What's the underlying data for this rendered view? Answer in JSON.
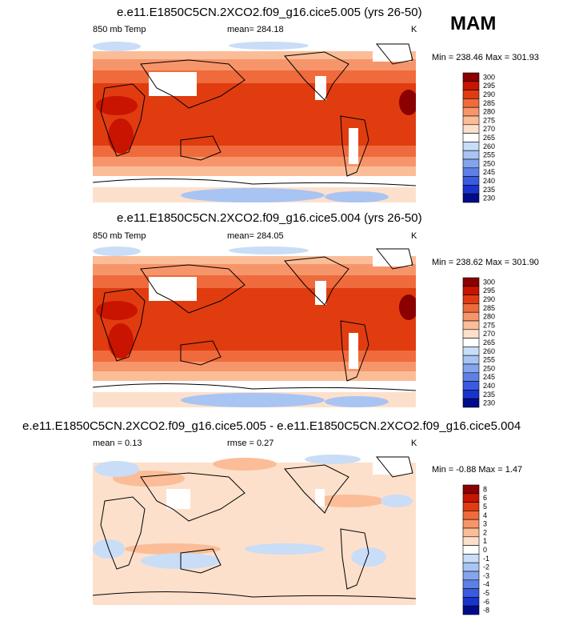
{
  "season": "MAM",
  "chart_data": [
    {
      "type": "heatmap",
      "title": "e.e11.E1850C5CN.2XCO2.f09_g16.cice5.005 (yrs 26-50)",
      "left_label": "850 mb Temp",
      "mean_label": "mean= 284.18",
      "units": "K",
      "minmax_label": "Min = 238.46 Max = 301.93",
      "min": 238.46,
      "max": 301.93,
      "mean": 284.18,
      "colorbar_levels": [
        "300",
        "295",
        "290",
        "285",
        "280",
        "275",
        "270",
        "265",
        "260",
        "255",
        "250",
        "245",
        "240",
        "235",
        "230"
      ],
      "colorbar_colors": [
        "#8b0000",
        "#c81400",
        "#e03c10",
        "#ef6a3c",
        "#f7956a",
        "#fbbd97",
        "#fde0cc",
        "#ffffff",
        "#c9ddf7",
        "#a8c4f3",
        "#84a4ee",
        "#5e80e6",
        "#3a5ae0",
        "#1a33cc",
        "#000b8a"
      ]
    },
    {
      "type": "heatmap",
      "title": "e.e11.E1850C5CN.2XCO2.f09_g16.cice5.004 (yrs 26-50)",
      "left_label": "850 mb Temp",
      "mean_label": "mean= 284.05",
      "units": "K",
      "minmax_label": "Min = 238.62 Max = 301.90",
      "min": 238.62,
      "max": 301.9,
      "mean": 284.05,
      "colorbar_levels": [
        "300",
        "295",
        "290",
        "285",
        "280",
        "275",
        "270",
        "265",
        "260",
        "255",
        "250",
        "245",
        "240",
        "235",
        "230"
      ],
      "colorbar_colors": [
        "#8b0000",
        "#c81400",
        "#e03c10",
        "#ef6a3c",
        "#f7956a",
        "#fbbd97",
        "#fde0cc",
        "#ffffff",
        "#c9ddf7",
        "#a8c4f3",
        "#84a4ee",
        "#5e80e6",
        "#3a5ae0",
        "#1a33cc",
        "#000b8a"
      ]
    },
    {
      "type": "heatmap",
      "title": "e.e11.E1850C5CN.2XCO2.f09_g16.cice5.005 - e.e11.E1850C5CN.2XCO2.f09_g16.cice5.004",
      "left_label": "mean =  0.13",
      "mean_label": "rmse =  0.27",
      "units": "K",
      "minmax_label": "Min =  -0.88 Max =   1.47",
      "min": -0.88,
      "max": 1.47,
      "mean": 0.13,
      "rmse": 0.27,
      "colorbar_levels": [
        "8",
        "6",
        "5",
        "4",
        "3",
        "2",
        "1",
        "0",
        "-1",
        "-2",
        "-3",
        "-4",
        "-5",
        "-6",
        "-8"
      ],
      "colorbar_colors": [
        "#8b0000",
        "#c81400",
        "#e03c10",
        "#ef6a3c",
        "#f7956a",
        "#fbbd97",
        "#fde0cc",
        "#ffffff",
        "#c9ddf7",
        "#a8c4f3",
        "#84a4ee",
        "#5e80e6",
        "#3a5ae0",
        "#1a33cc",
        "#000b8a"
      ]
    }
  ]
}
